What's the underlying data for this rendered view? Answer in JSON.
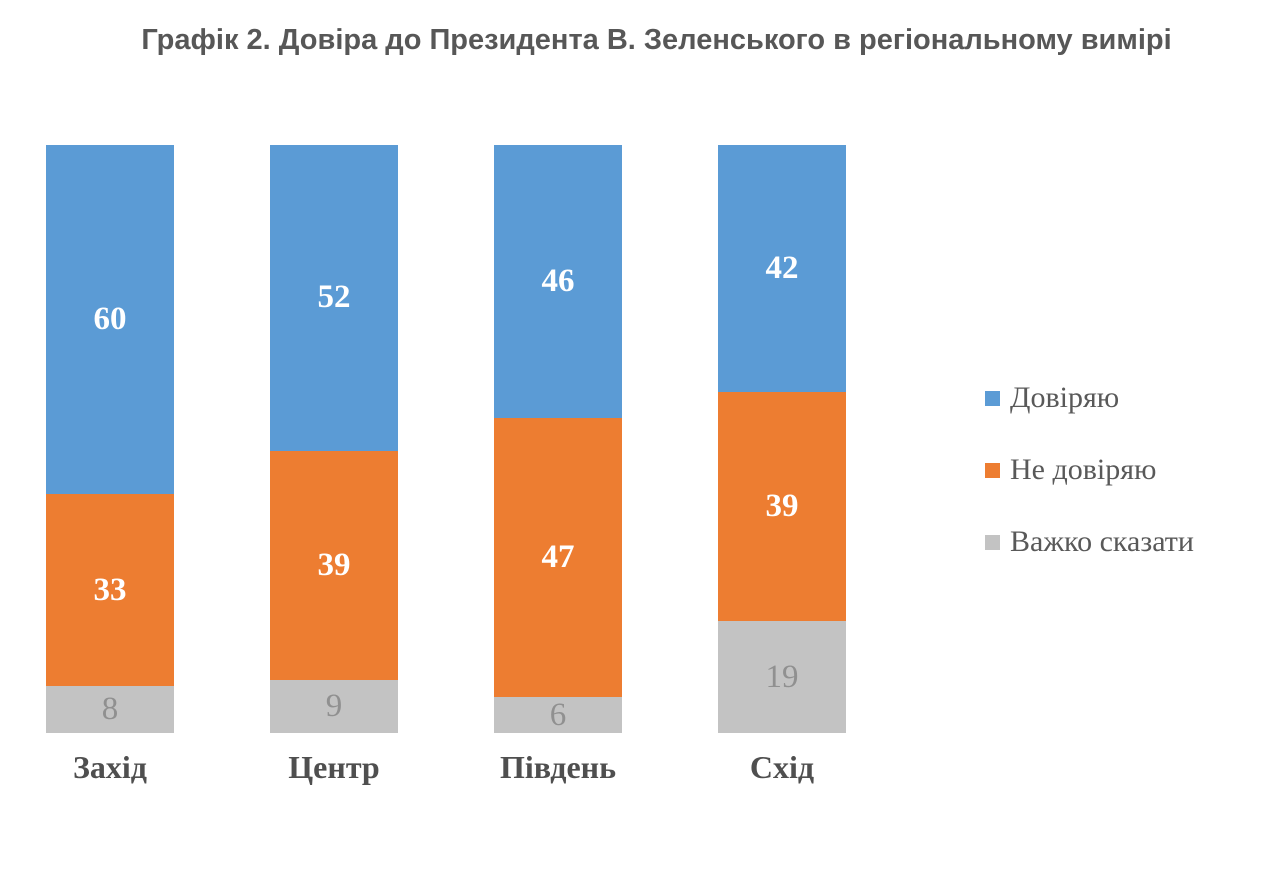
{
  "chart_data": {
    "type": "bar",
    "subtype": "stacked-100-vertical",
    "title": "Графік 2. Довіра до Президента В. Зеленського в регіональному вимірі",
    "categories": [
      "Захід",
      "Центр",
      "Південь",
      "Схід"
    ],
    "series": [
      {
        "name": "Довіряю",
        "color": "#5B9BD5",
        "values": [
          60,
          52,
          46,
          42
        ]
      },
      {
        "name": "Не довіряю",
        "color": "#ED7D31",
        "values": [
          33,
          39,
          47,
          39
        ]
      },
      {
        "name": "Важко сказати",
        "color": "#C3C3C3",
        "values": [
          8,
          9,
          6,
          19
        ]
      }
    ],
    "legend_position": "right",
    "grid": false,
    "axes_visible": false,
    "value_labels": "inside-center",
    "colors": {
      "title_text": "#575757",
      "category_text": "#4f4f4f",
      "legend_text": "#595959",
      "value_label_on_color": "#ffffff",
      "value_label_on_gray": "#909090",
      "background": "#ffffff"
    }
  }
}
